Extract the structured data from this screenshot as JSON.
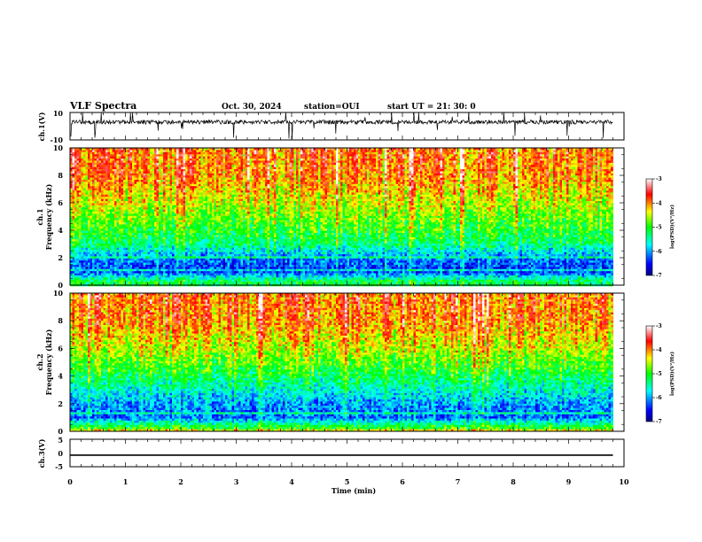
{
  "header": {
    "title": "VLF Spectra",
    "date": "Oct. 30, 2024",
    "station": "station=OUI",
    "start": "start  UT  =   21: 30: 0"
  },
  "chart_data": [
    {
      "id": "ch1-waveform",
      "type": "line",
      "ylabel": "ch.1(V)",
      "ylim": [
        -10,
        10
      ],
      "ytick_labels": [
        "10",
        "-10"
      ],
      "xlim": [
        0,
        10
      ],
      "description_baseline": 3
    },
    {
      "id": "ch1-spectrogram",
      "type": "heatmap",
      "ylabel": "ch.1 Frequency (kHz)",
      "ylabel_line1": "ch.1",
      "ylabel_line2": "Frequency (kHz)",
      "ylim": [
        0,
        10
      ],
      "ytick_labels": [
        "10",
        "8",
        "6",
        "4",
        "2",
        "0"
      ],
      "xlim": [
        0,
        10
      ],
      "colorbar": {
        "label": "log(PSD)(V²/Hz)",
        "range": [
          -7,
          -3
        ],
        "tick_labels": [
          "-3",
          "-4",
          "-5",
          "-6",
          "-7"
        ],
        "colormap": [
          "#000080",
          "#0000ff",
          "#00ffff",
          "#00ff00",
          "#ffff00",
          "#ff0000",
          "#ffffff"
        ]
      },
      "band_profile_log_psd": [
        {
          "freq_khz": 0.3,
          "value": -5.2
        },
        {
          "freq_khz": 1.0,
          "value": -6.4
        },
        {
          "freq_khz": 2.0,
          "value": -6.1
        },
        {
          "freq_khz": 3.0,
          "value": -5.3
        },
        {
          "freq_khz": 4.5,
          "value": -4.9
        },
        {
          "freq_khz": 6.0,
          "value": -4.5
        },
        {
          "freq_khz": 8.0,
          "value": -4.0
        },
        {
          "freq_khz": 10.0,
          "value": -3.9
        }
      ]
    },
    {
      "id": "ch2-spectrogram",
      "type": "heatmap",
      "ylabel": "ch.2 Frequency (kHz)",
      "ylabel_line1": "ch.2",
      "ylabel_line2": "Frequency (kHz)",
      "ylim": [
        0,
        10
      ],
      "ytick_labels": [
        "10",
        "8",
        "6",
        "4",
        "2",
        "0"
      ],
      "xlim": [
        0,
        10
      ],
      "colorbar": {
        "label": "log(PSD)(V²/Hz)",
        "range": [
          -7,
          -3
        ],
        "tick_labels": [
          "-3",
          "-4",
          "-5",
          "-6",
          "-7"
        ],
        "colormap": [
          "#000080",
          "#0000ff",
          "#00ffff",
          "#00ff00",
          "#ffff00",
          "#ff0000",
          "#ffffff"
        ]
      },
      "band_profile_log_psd": [
        {
          "freq_khz": 0.3,
          "value": -5.0
        },
        {
          "freq_khz": 1.0,
          "value": -6.2
        },
        {
          "freq_khz": 2.0,
          "value": -6.0
        },
        {
          "freq_khz": 3.0,
          "value": -5.6
        },
        {
          "freq_khz": 4.5,
          "value": -5.0
        },
        {
          "freq_khz": 6.0,
          "value": -4.5
        },
        {
          "freq_khz": 8.0,
          "value": -4.0
        },
        {
          "freq_khz": 10.0,
          "value": -3.9
        }
      ]
    },
    {
      "id": "ch3-waveform",
      "type": "line",
      "ylabel": "ch.3(V)",
      "ylim": [
        -5,
        5
      ],
      "ytick_labels": [
        "5",
        "0",
        "-5"
      ],
      "xlim": [
        0,
        10
      ],
      "x": [
        0,
        9.8
      ],
      "y": [
        -0.8,
        -0.8
      ]
    }
  ],
  "xaxis": {
    "label": "Time  (min)",
    "range": [
      0,
      10
    ],
    "tick_labels": [
      "0",
      "1",
      "2",
      "3",
      "4",
      "5",
      "6",
      "7",
      "8",
      "9",
      "10"
    ],
    "data_end_min": 9.8
  }
}
